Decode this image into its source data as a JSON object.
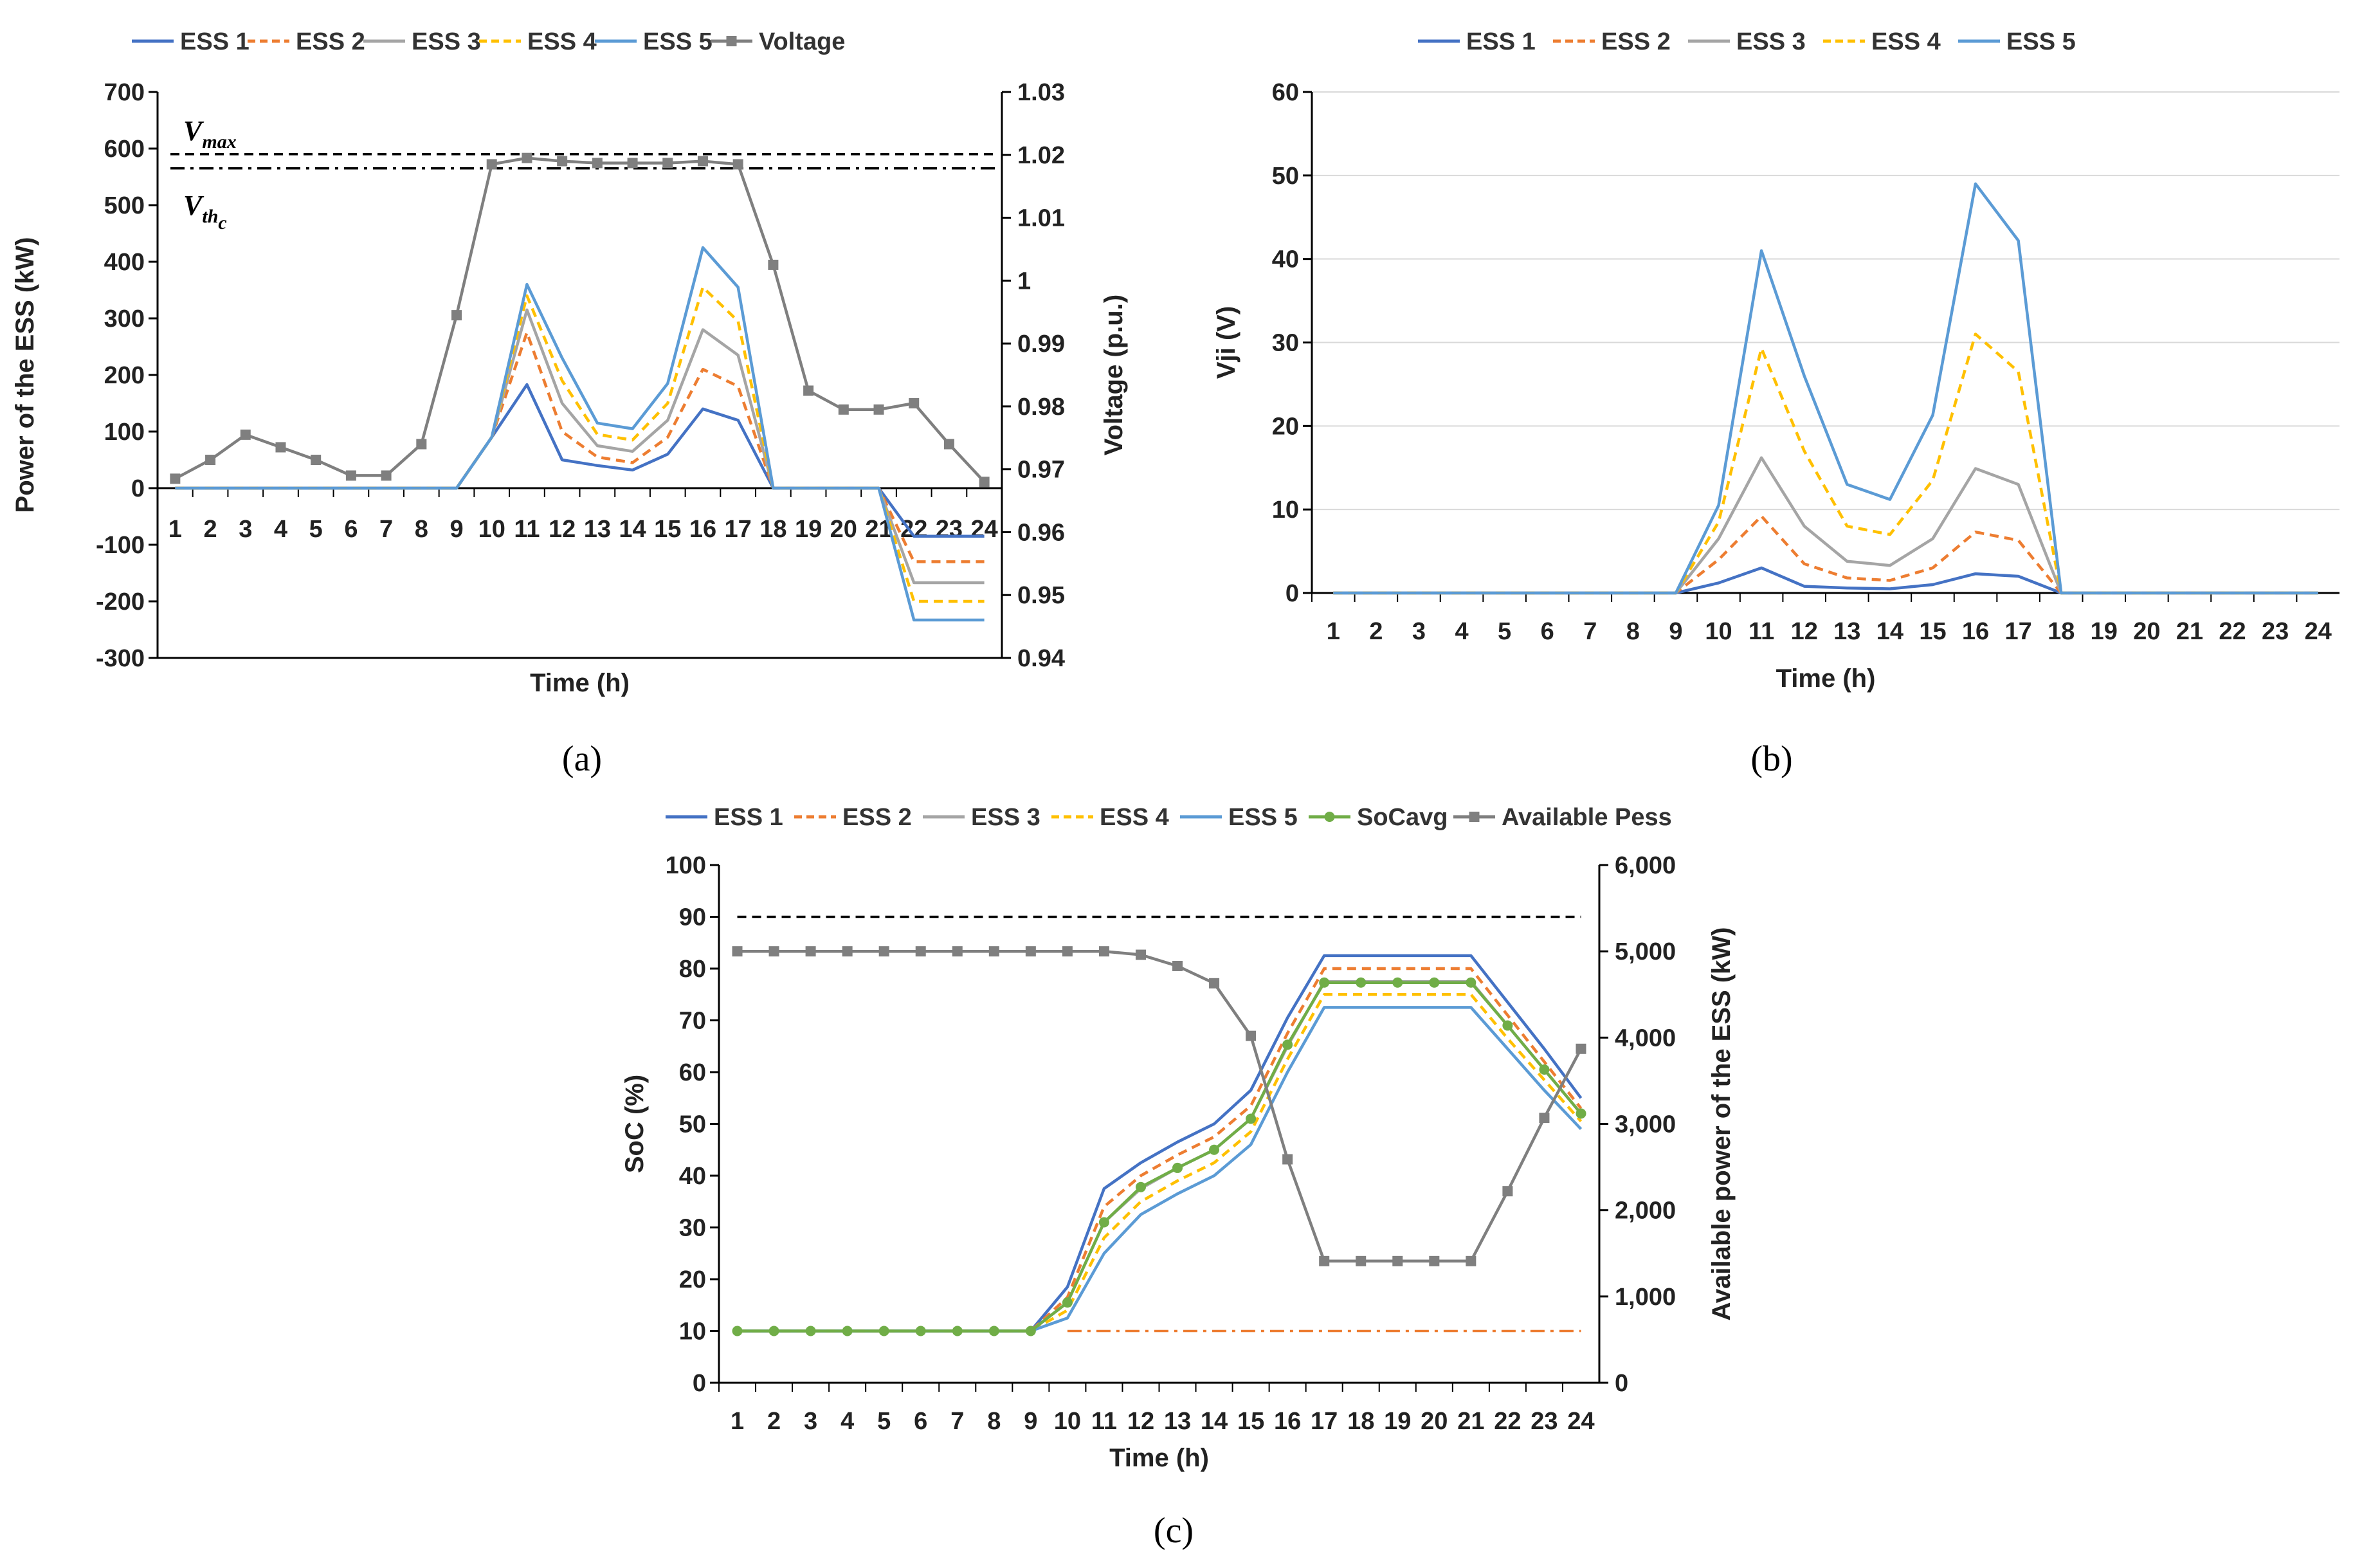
{
  "chart_data": [
    {
      "id": "a",
      "type": "line",
      "panel_label": "(a)",
      "xlabel": "Time (h)",
      "ylabel": "Power of the ESS (kW)",
      "y2label": "Voltage (p.u.)",
      "ylim": [
        -300,
        700
      ],
      "y2lim": [
        0.94,
        1.03
      ],
      "categories": [
        "1",
        "2",
        "3",
        "4",
        "5",
        "6",
        "7",
        "8",
        "9",
        "10",
        "11",
        "12",
        "13",
        "14",
        "15",
        "16",
        "17",
        "18",
        "19",
        "20",
        "21",
        "22",
        "23",
        "24"
      ],
      "yticks": [
        "-300",
        "-200",
        "-100",
        "0",
        "100",
        "200",
        "300",
        "400",
        "500",
        "600",
        "700"
      ],
      "y2ticks": [
        "0.94",
        "0.95",
        "0.96",
        "0.97",
        "0.98",
        "0.99",
        "1",
        "1.01",
        "1.02",
        "1.03"
      ],
      "series": [
        {
          "name": "ESS 1",
          "color": "#4472C4",
          "dash": "solid",
          "values": [
            0,
            0,
            0,
            0,
            0,
            0,
            0,
            0,
            0,
            90,
            183,
            50,
            40,
            32,
            60,
            140,
            120,
            0,
            0,
            0,
            0,
            -85,
            -85,
            -85
          ]
        },
        {
          "name": "ESS 2",
          "color": "#ED7D31",
          "dash": "dashed",
          "values": [
            0,
            0,
            0,
            0,
            0,
            0,
            0,
            0,
            0,
            90,
            275,
            100,
            55,
            45,
            90,
            210,
            180,
            0,
            0,
            0,
            0,
            -130,
            -130,
            -130
          ]
        },
        {
          "name": "ESS 3",
          "color": "#A5A5A5",
          "dash": "solid",
          "values": [
            0,
            0,
            0,
            0,
            0,
            0,
            0,
            0,
            0,
            90,
            315,
            150,
            75,
            65,
            120,
            280,
            235,
            0,
            0,
            0,
            0,
            -167,
            -167,
            -167
          ]
        },
        {
          "name": "ESS 4",
          "color": "#FFC000",
          "dash": "dashed",
          "values": [
            0,
            0,
            0,
            0,
            0,
            0,
            0,
            0,
            0,
            90,
            340,
            190,
            95,
            85,
            150,
            355,
            295,
            0,
            0,
            0,
            0,
            -200,
            -200,
            -200
          ]
        },
        {
          "name": "ESS 5",
          "color": "#5B9BD5",
          "dash": "solid",
          "values": [
            0,
            0,
            0,
            0,
            0,
            0,
            0,
            0,
            0,
            90,
            360,
            230,
            115,
            105,
            185,
            425,
            355,
            0,
            0,
            0,
            0,
            -233,
            -233,
            -233
          ]
        },
        {
          "name": "Voltage",
          "color": "#7F7F7F",
          "dash": "solid",
          "marker": "square",
          "axis": "right",
          "values": [
            0.9685,
            0.9715,
            0.9755,
            0.9735,
            0.9715,
            0.969,
            0.969,
            0.974,
            0.9945,
            1.0185,
            1.0195,
            1.019,
            1.0187,
            1.0187,
            1.0187,
            1.019,
            1.0185,
            1.0025,
            0.9825,
            0.9795,
            0.9795,
            0.9805,
            0.974,
            0.968
          ]
        }
      ],
      "references": [
        {
          "label": "V",
          "sub": "max",
          "value": 590,
          "dash": "dashed"
        },
        {
          "label": "V",
          "sub": "th",
          "subsub": "c",
          "value": 565,
          "dash": "dashdot"
        }
      ]
    },
    {
      "id": "b",
      "type": "line",
      "panel_label": "(b)",
      "xlabel": "Time (h)",
      "ylabel": "Vji (V)",
      "ylim": [
        0,
        60
      ],
      "categories": [
        "1",
        "2",
        "3",
        "4",
        "5",
        "6",
        "7",
        "8",
        "9",
        "10",
        "11",
        "12",
        "13",
        "14",
        "15",
        "16",
        "17",
        "18",
        "19",
        "20",
        "21",
        "22",
        "23",
        "24"
      ],
      "yticks": [
        "0",
        "10",
        "20",
        "30",
        "40",
        "50",
        "60"
      ],
      "series": [
        {
          "name": "ESS 1",
          "color": "#4472C4",
          "dash": "solid",
          "values": [
            0,
            0,
            0,
            0,
            0,
            0,
            0,
            0,
            0,
            1.2,
            3.0,
            0.8,
            0.6,
            0.5,
            1.0,
            2.3,
            2.0,
            0,
            0,
            0,
            0,
            0,
            0,
            0
          ]
        },
        {
          "name": "ESS 2",
          "color": "#ED7D31",
          "dash": "dashed",
          "values": [
            0,
            0,
            0,
            0,
            0,
            0,
            0,
            0,
            0,
            4.0,
            9.2,
            3.5,
            1.8,
            1.5,
            3.0,
            7.3,
            6.3,
            0,
            0,
            0,
            0,
            0,
            0,
            0
          ]
        },
        {
          "name": "ESS 3",
          "color": "#A5A5A5",
          "dash": "solid",
          "values": [
            0,
            0,
            0,
            0,
            0,
            0,
            0,
            0,
            0,
            6.5,
            16.2,
            8.0,
            3.8,
            3.3,
            6.5,
            14.9,
            13.0,
            0,
            0,
            0,
            0,
            0,
            0,
            0
          ]
        },
        {
          "name": "ESS 4",
          "color": "#FFC000",
          "dash": "dashed",
          "values": [
            0,
            0,
            0,
            0,
            0,
            0,
            0,
            0,
            0,
            8.5,
            29.3,
            17.0,
            8.0,
            7.0,
            13.5,
            31.0,
            26.5,
            0,
            0,
            0,
            0,
            0,
            0,
            0
          ]
        },
        {
          "name": "ESS 5",
          "color": "#5B9BD5",
          "dash": "solid",
          "values": [
            0,
            0,
            0,
            0,
            0,
            0,
            0,
            0,
            0,
            10.5,
            41.0,
            26.0,
            13.0,
            11.2,
            21.3,
            49.0,
            42.2,
            0,
            0,
            0,
            0,
            0,
            0,
            0
          ]
        }
      ]
    },
    {
      "id": "c",
      "type": "line",
      "panel_label": "(c)",
      "xlabel": "Time (h)",
      "ylabel": "SoC (%)",
      "y2label": "Available power of the ESS (kW)",
      "ylim": [
        0,
        100
      ],
      "y2lim": [
        0,
        6000
      ],
      "categories": [
        "1",
        "2",
        "3",
        "4",
        "5",
        "6",
        "7",
        "8",
        "9",
        "10",
        "11",
        "12",
        "13",
        "14",
        "15",
        "16",
        "17",
        "18",
        "19",
        "20",
        "21",
        "22",
        "23",
        "24"
      ],
      "yticks": [
        "0",
        "10",
        "20",
        "30",
        "40",
        "50",
        "60",
        "70",
        "80",
        "90",
        "100"
      ],
      "y2ticks": [
        "0",
        "1,000",
        "2,000",
        "3,000",
        "4,000",
        "5,000",
        "6,000"
      ],
      "series": [
        {
          "name": "ESS 1",
          "color": "#4472C4",
          "dash": "solid",
          "values": [
            10,
            10,
            10,
            10,
            10,
            10,
            10,
            10,
            10,
            18.5,
            37.5,
            42.5,
            46.5,
            50,
            56.5,
            70.5,
            82.5,
            82.5,
            82.5,
            82.5,
            82.5,
            73.5,
            64.5,
            55
          ]
        },
        {
          "name": "ESS 2",
          "color": "#ED7D31",
          "dash": "dashed",
          "values": [
            10,
            10,
            10,
            10,
            10,
            10,
            10,
            10,
            10,
            16.5,
            34,
            40,
            44,
            47.5,
            53.5,
            67.5,
            80,
            80,
            80,
            80,
            80,
            71,
            62,
            53
          ]
        },
        {
          "name": "ESS 3",
          "color": "#A5A5A5",
          "dash": "solid",
          "values": [
            10,
            10,
            10,
            10,
            10,
            10,
            10,
            10,
            10,
            15.5,
            31,
            37.5,
            41.5,
            45,
            51,
            65,
            77.5,
            77.5,
            77.5,
            77.5,
            77.5,
            69,
            60.5,
            52
          ]
        },
        {
          "name": "ESS 4",
          "color": "#FFC000",
          "dash": "dashed",
          "values": [
            10,
            10,
            10,
            10,
            10,
            10,
            10,
            10,
            10,
            14,
            28,
            35,
            39,
            42.5,
            48.5,
            62.5,
            75,
            75,
            75,
            75,
            75,
            66.5,
            58.5,
            50.5
          ]
        },
        {
          "name": "ESS 5",
          "color": "#5B9BD5",
          "dash": "solid",
          "values": [
            10,
            10,
            10,
            10,
            10,
            10,
            10,
            10,
            10,
            12.5,
            25,
            32.5,
            36.5,
            40,
            46,
            60,
            72.5,
            72.5,
            72.5,
            72.5,
            72.5,
            64.5,
            56.5,
            49
          ]
        },
        {
          "name": "SoCavg",
          "color": "#70AD47",
          "dash": "solid",
          "marker": "circle",
          "values": [
            10,
            10,
            10,
            10,
            10,
            10,
            10,
            10,
            10,
            15.5,
            31,
            37.8,
            41.5,
            45,
            51,
            65.3,
            77.3,
            77.3,
            77.3,
            77.3,
            77.3,
            69,
            60.5,
            52
          ]
        },
        {
          "name": "Available Pess",
          "color": "#7F7F7F",
          "dash": "solid",
          "marker": "square",
          "axis": "right",
          "values": [
            5000,
            5000,
            5000,
            5000,
            5000,
            5000,
            5000,
            5000,
            5000,
            5000,
            5000,
            4960,
            4830,
            4630,
            4020,
            2590,
            1410,
            1410,
            1410,
            1410,
            1410,
            2220,
            3070,
            3870
          ]
        }
      ],
      "references": [
        {
          "value": 90,
          "color": "#000000",
          "dash": "dashed",
          "range": [
            1,
            24
          ]
        },
        {
          "value": 10,
          "color": "#ED7D31",
          "dash": "dashdot",
          "range": [
            10,
            24
          ]
        }
      ]
    }
  ]
}
